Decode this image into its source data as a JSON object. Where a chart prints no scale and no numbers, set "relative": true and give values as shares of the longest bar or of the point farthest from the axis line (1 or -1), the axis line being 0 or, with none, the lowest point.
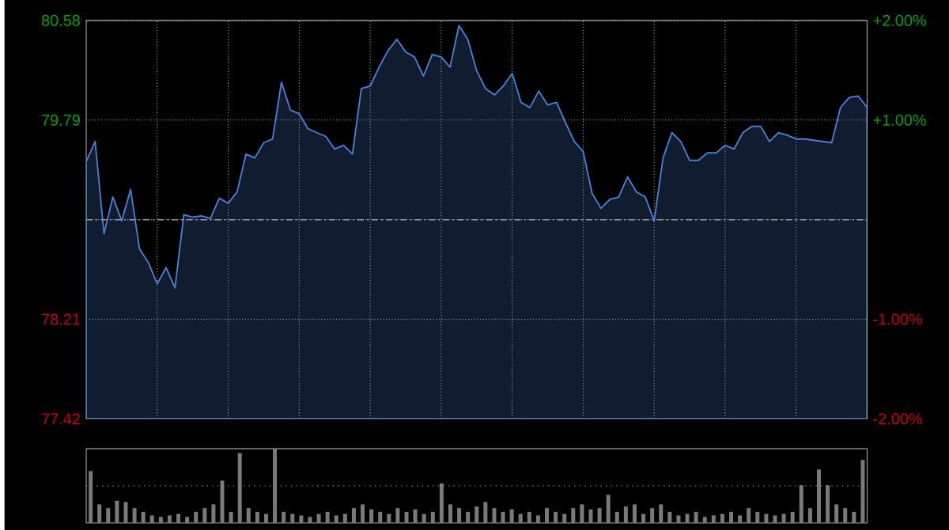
{
  "chart_data": [
    {
      "type": "area",
      "color": "#4a7fd4",
      "categories": [
        null,
        null,
        null,
        null,
        null,
        null,
        null,
        null,
        null,
        null,
        null,
        null,
        null,
        null,
        null,
        null,
        null,
        null,
        null,
        null,
        null,
        null,
        null,
        null,
        null,
        null,
        null,
        null,
        null,
        null,
        null,
        null,
        null,
        null,
        null,
        null,
        null,
        null,
        null,
        null,
        null,
        null,
        null,
        null,
        null,
        null,
        null,
        null,
        null,
        null,
        null,
        null,
        null,
        null,
        null,
        null,
        null,
        null,
        null,
        null,
        null,
        null,
        null,
        null,
        null,
        null,
        null,
        null,
        null,
        null,
        null,
        null,
        null,
        null,
        null,
        null,
        null,
        null,
        null,
        null,
        null,
        null,
        null,
        null,
        null,
        null,
        null,
        null,
        null
      ],
      "values": [
        79.46,
        79.62,
        78.89,
        79.18,
        78.99,
        79.24,
        78.77,
        78.66,
        78.49,
        78.62,
        78.46,
        79.04,
        79.02,
        79.03,
        79.01,
        79.17,
        79.13,
        79.22,
        79.52,
        79.49,
        79.61,
        79.64,
        80.09,
        79.87,
        79.84,
        79.72,
        79.69,
        79.66,
        79.56,
        79.59,
        79.52,
        80.04,
        80.06,
        80.21,
        80.34,
        80.43,
        80.33,
        80.29,
        80.14,
        80.31,
        80.29,
        80.21,
        80.54,
        80.43,
        80.18,
        80.04,
        79.99,
        80.06,
        80.16,
        79.93,
        79.89,
        80.02,
        79.91,
        79.93,
        79.77,
        79.62,
        79.54,
        79.21,
        79.09,
        79.16,
        79.18,
        79.34,
        79.22,
        79.18,
        78.99,
        79.49,
        79.69,
        79.62,
        79.47,
        79.47,
        79.53,
        79.53,
        79.59,
        79.56,
        79.69,
        79.74,
        79.74,
        79.62,
        79.69,
        79.67,
        79.64,
        79.64,
        79.63,
        79.62,
        79.61,
        79.89,
        79.97,
        79.98,
        79.89
      ],
      "ylim": [
        77.42,
        80.58
      ],
      "yticks": [
        77.42,
        78.21,
        {
          "value": 79.0,
          "label": null
        },
        79.79,
        80.58
      ],
      "y2lim": [
        -2,
        2
      ],
      "y2ticks": [
        {
          "value": -2,
          "label": "-2.00%"
        },
        {
          "value": -1,
          "label": "-1.00%"
        },
        {
          "value": 0,
          "label": null
        },
        {
          "value": 1,
          "label": "+1.00%"
        },
        {
          "value": 2,
          "label": "+2.00%"
        }
      ],
      "ref_lines": [
        {
          "axis": "y",
          "value": 79.0,
          "line_style": "dashed"
        }
      ],
      "grid": true,
      "tick_labels": "y"
    },
    {
      "type": "bar",
      "color": "#7a7a7a",
      "relative": true,
      "tick_labels": false,
      "ref_lines": [
        {
          "axis": "y",
          "value": 0.5,
          "line_style": "dotted"
        }
      ],
      "categories": [
        null,
        null,
        null,
        null,
        null,
        null,
        null,
        null,
        null,
        null,
        null,
        null,
        null,
        null,
        null,
        null,
        null,
        null,
        null,
        null,
        null,
        null,
        null,
        null,
        null,
        null,
        null,
        null,
        null,
        null,
        null,
        null,
        null,
        null,
        null,
        null,
        null,
        null,
        null,
        null,
        null,
        null,
        null,
        null,
        null,
        null,
        null,
        null,
        null,
        null,
        null,
        null,
        null,
        null,
        null,
        null,
        null,
        null,
        null,
        null,
        null,
        null,
        null,
        null,
        null,
        null,
        null,
        null,
        null,
        null,
        null,
        null,
        null,
        null,
        null,
        null,
        null,
        null,
        null,
        null,
        null,
        null,
        null,
        null,
        null,
        null,
        null,
        null,
        null
      ],
      "values": [
        0.7,
        0.25,
        0.2,
        0.3,
        0.28,
        0.2,
        0.15,
        0.1,
        0.08,
        0.1,
        0.12,
        0.08,
        0.15,
        0.2,
        0.25,
        0.57,
        0.15,
        0.94,
        0.2,
        0.15,
        0.12,
        1.0,
        0.15,
        0.12,
        0.1,
        0.08,
        0.12,
        0.15,
        0.1,
        0.12,
        0.2,
        0.25,
        0.18,
        0.15,
        0.12,
        0.2,
        0.15,
        0.18,
        0.12,
        0.15,
        0.53,
        0.25,
        0.2,
        0.15,
        0.22,
        0.28,
        0.2,
        0.15,
        0.18,
        0.12,
        0.15,
        0.1,
        0.2,
        0.15,
        0.12,
        0.2,
        0.25,
        0.18,
        0.2,
        0.38,
        0.15,
        0.22,
        0.25,
        0.12,
        0.2,
        0.25,
        0.15,
        0.1,
        0.12,
        0.15,
        0.08,
        0.1,
        0.12,
        0.15,
        0.1,
        0.2,
        0.15,
        0.12,
        0.1,
        0.12,
        0.15,
        0.51,
        0.2,
        0.72,
        0.51,
        0.25,
        0.2,
        0.15,
        0.85
      ]
    }
  ]
}
